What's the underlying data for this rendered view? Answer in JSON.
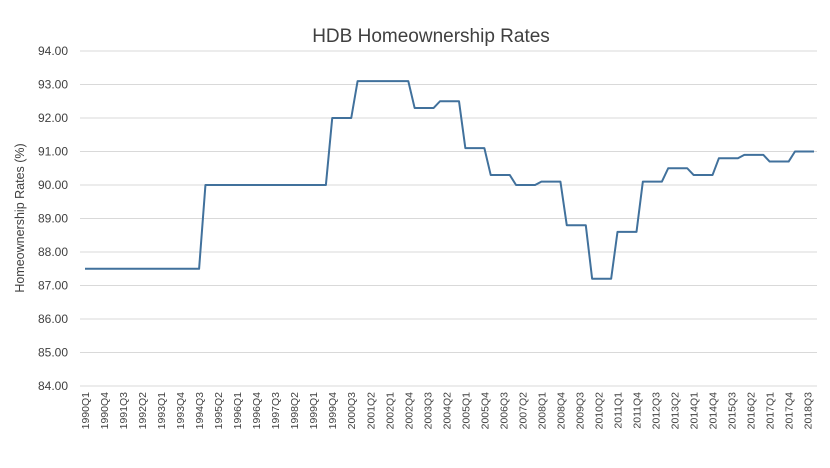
{
  "chart_data": {
    "type": "line",
    "title": "HDB Homeownership Rates",
    "xlabel": "",
    "ylabel": "Homeownership Rates (%)",
    "ylim": [
      84,
      94
    ],
    "yticks": [
      "84.00",
      "85.00",
      "86.00",
      "87.00",
      "88.00",
      "89.00",
      "90.00",
      "91.00",
      "92.00",
      "93.00",
      "94.00"
    ],
    "grid": true,
    "legend": "none",
    "line_color": "#41719c",
    "xticks": [
      "1990Q1",
      "1990Q4",
      "1991Q3",
      "1992Q2",
      "1993Q1",
      "1993Q4",
      "1994Q3",
      "1995Q2",
      "1996Q1",
      "1996Q4",
      "1997Q3",
      "1998Q2",
      "1999Q1",
      "1999Q4",
      "2000Q3",
      "2001Q2",
      "2002Q1",
      "2002Q4",
      "2003Q3",
      "2004Q2",
      "2005Q1",
      "2005Q4",
      "2006Q3",
      "2007Q2",
      "2008Q1",
      "2008Q4",
      "2009Q3",
      "2010Q2",
      "2011Q1",
      "2011Q4",
      "2012Q3",
      "2013Q2",
      "2014Q1",
      "2014Q4",
      "2015Q3",
      "2016Q2",
      "2017Q1",
      "2017Q4",
      "2018Q3"
    ],
    "series": [
      {
        "values_by_year": [
          [
            "1990",
            [
              87.5,
              87.5,
              87.5,
              87.5
            ]
          ],
          [
            "1991",
            [
              87.5,
              87.5,
              87.5,
              87.5
            ]
          ],
          [
            "1992",
            [
              87.5,
              87.5,
              87.5,
              87.5
            ]
          ],
          [
            "1993",
            [
              87.5,
              87.5,
              87.5,
              87.5
            ]
          ],
          [
            "1994",
            [
              87.5,
              87.5,
              87.5,
              90.0
            ]
          ],
          [
            "1995",
            [
              90.0,
              90.0,
              90.0,
              90.0
            ]
          ],
          [
            "1996",
            [
              90.0,
              90.0,
              90.0,
              90.0
            ]
          ],
          [
            "1997",
            [
              90.0,
              90.0,
              90.0,
              90.0
            ]
          ],
          [
            "1998",
            [
              90.0,
              90.0,
              90.0,
              90.0
            ]
          ],
          [
            "1999",
            [
              90.0,
              90.0,
              90.0,
              92.0
            ]
          ],
          [
            "2000",
            [
              92.0,
              92.0,
              92.0,
              93.1
            ]
          ],
          [
            "2001",
            [
              93.1,
              93.1,
              93.1,
              93.1
            ]
          ],
          [
            "2002",
            [
              93.1,
              93.1,
              93.1,
              93.1
            ]
          ],
          [
            "2003",
            [
              92.3,
              92.3,
              92.3,
              92.3
            ]
          ],
          [
            "2004",
            [
              92.5,
              92.5,
              92.5,
              92.5
            ]
          ],
          [
            "2005",
            [
              91.1,
              91.1,
              91.1,
              91.1
            ]
          ],
          [
            "2006",
            [
              90.3,
              90.3,
              90.3,
              90.3
            ]
          ],
          [
            "2007",
            [
              90.0,
              90.0,
              90.0,
              90.0
            ]
          ],
          [
            "2008",
            [
              90.1,
              90.1,
              90.1,
              90.1
            ]
          ],
          [
            "2009",
            [
              88.8,
              88.8,
              88.8,
              88.8
            ]
          ],
          [
            "2010",
            [
              87.2,
              87.2,
              87.2,
              87.2
            ]
          ],
          [
            "2011",
            [
              88.6,
              88.6,
              88.6,
              88.6
            ]
          ],
          [
            "2012",
            [
              90.1,
              90.1,
              90.1,
              90.1
            ]
          ],
          [
            "2013",
            [
              90.5,
              90.5,
              90.5,
              90.5
            ]
          ],
          [
            "2014",
            [
              90.3,
              90.3,
              90.3,
              90.3
            ]
          ],
          [
            "2015",
            [
              90.8,
              90.8,
              90.8,
              90.8
            ]
          ],
          [
            "2016",
            [
              90.9,
              90.9,
              90.9,
              90.9
            ]
          ],
          [
            "2017",
            [
              90.7,
              90.7,
              90.7,
              90.7
            ]
          ],
          [
            "2018",
            [
              91.0,
              91.0,
              91.0,
              91.0
            ]
          ]
        ]
      }
    ]
  }
}
